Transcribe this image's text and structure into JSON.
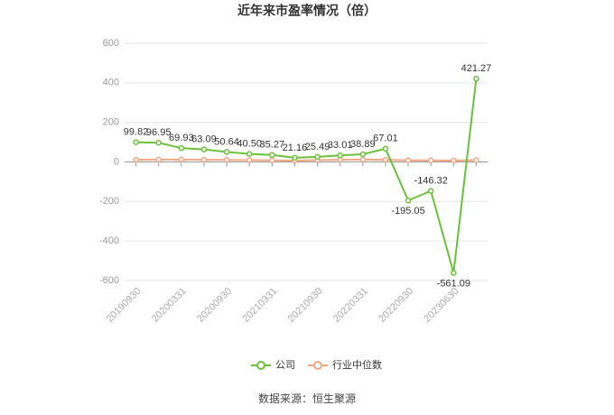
{
  "chart_data": {
    "type": "line",
    "title": "近年来市盈率情况（倍）",
    "source": "数据来源：恒生聚源",
    "categories": [
      "20190930",
      null,
      "20200331",
      null,
      "20200930",
      null,
      "20210331",
      null,
      "20210930",
      null,
      "20220331",
      null,
      "20220930",
      null,
      "20230630",
      null
    ],
    "series": [
      {
        "name": "公司",
        "color": "#6cc13c",
        "values": [
          99.82,
          96.95,
          69.93,
          63.09,
          50.64,
          40.5,
          35.27,
          21.16,
          25.49,
          33.01,
          38.89,
          67.01,
          -195.05,
          -146.32,
          -561.09,
          421.27
        ],
        "value_labels": [
          "99.82",
          "96.95",
          "69.93",
          "63.09",
          "50.64",
          "40.50",
          "35.27",
          "21.16",
          "25.49",
          "33.01",
          "38.89",
          "67.01",
          "-195.05",
          "-146.32",
          "-561.09",
          "421.27"
        ]
      },
      {
        "name": "行业中位数",
        "color": "#f4a683",
        "values": [
          11,
          12,
          12,
          11,
          10,
          9,
          8,
          7,
          9,
          11,
          12,
          11,
          8,
          8,
          7,
          9
        ]
      }
    ],
    "ylim": [
      -600,
      600
    ],
    "yticks": [
      -600,
      -400,
      -200,
      0,
      200,
      400,
      600
    ],
    "grid": true,
    "legend": "bottom"
  }
}
